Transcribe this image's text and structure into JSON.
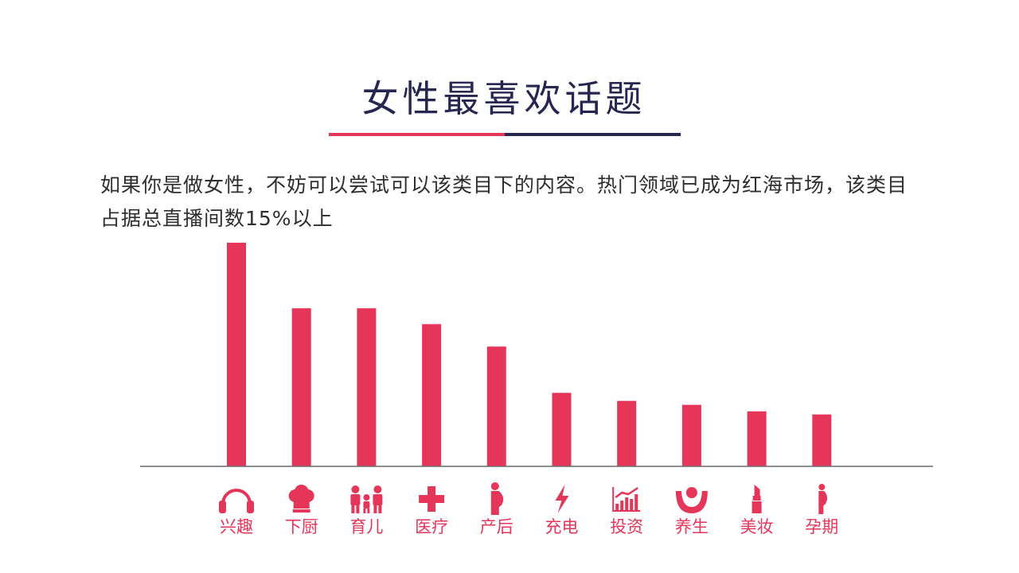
{
  "title": "女性最喜欢话题",
  "description": "如果你是做女性，不妨可以尝试可以该类目下的内容。热门领域已成为红海市场，该类目占据总直播间数15%以上",
  "colors": {
    "bar": "#E5365A",
    "title": "#262650",
    "underline_left": "#E5365A",
    "underline_right": "#262650",
    "axis": "#6b6b6b",
    "label": "#E5365A",
    "text": "#2e2e2e"
  },
  "chart_data": {
    "type": "bar",
    "categories": [
      "兴趣",
      "下厨",
      "育儿",
      "医疗",
      "产后",
      "充电",
      "投资",
      "养生",
      "美妆",
      "孕期"
    ],
    "icons": [
      "headphones-icon",
      "chef-hat-icon",
      "family-icon",
      "medical-cross-icon",
      "pregnant-woman-icon",
      "lightning-icon",
      "growth-chart-icon",
      "health-hands-icon",
      "lipstick-icon",
      "pregnant-silhouette-icon"
    ],
    "values": [
      100,
      70.7,
      70.7,
      63.6,
      53.6,
      32.9,
      29.3,
      27.5,
      24.6,
      23.2
    ],
    "xlabel": "",
    "ylabel": "",
    "ylim": [
      0,
      100
    ],
    "grid": false,
    "legend": "none"
  }
}
